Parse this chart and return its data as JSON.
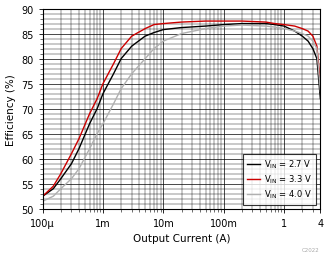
{
  "title": "",
  "xlabel": "Output Current (A)",
  "ylabel": "Efficiency (%)",
  "xlim": [
    0.0001,
    4
  ],
  "ylim": [
    50,
    90
  ],
  "yticks": [
    50,
    55,
    60,
    65,
    70,
    75,
    80,
    85,
    90
  ],
  "xtick_labels": [
    "100μ",
    "1m",
    "10m",
    "100m",
    "1",
    "4"
  ],
  "xtick_values": [
    0.0001,
    0.001,
    0.01,
    0.1,
    1,
    4
  ],
  "legend_labels": [
    "V$_{\\mathregular{IN}}$ = 2.7 V",
    "V$_{\\mathregular{IN}}$ = 3.3 V",
    "V$_{\\mathregular{IN}}$ = 4.0 V"
  ],
  "line_colors": [
    "#000000",
    "#cc0000",
    "#b0b0b0"
  ],
  "background_color": "#ffffff",
  "grid_color": "#000000",
  "curves": {
    "vin_27": {
      "x": [
        0.0001,
        0.00015,
        0.0002,
        0.0003,
        0.0004,
        0.0006,
        0.0008,
        0.001,
        0.0015,
        0.002,
        0.003,
        0.005,
        0.007,
        0.01,
        0.02,
        0.05,
        0.1,
        0.2,
        0.5,
        0.7,
        1.0,
        1.5,
        2.0,
        2.5,
        3.0,
        3.5,
        4.0
      ],
      "y": [
        52.5,
        54,
        56,
        59,
        62,
        67,
        70,
        73,
        77,
        80,
        82.5,
        84.5,
        85.2,
        85.8,
        86.2,
        86.5,
        86.8,
        87.0,
        87.0,
        86.8,
        86.5,
        85.5,
        84.5,
        83.5,
        82.0,
        80.0,
        72.0
      ]
    },
    "vin_33": {
      "x": [
        0.0001,
        0.00015,
        0.0002,
        0.0003,
        0.0004,
        0.0006,
        0.0008,
        0.001,
        0.0015,
        0.002,
        0.003,
        0.005,
        0.007,
        0.01,
        0.02,
        0.05,
        0.1,
        0.2,
        0.5,
        0.7,
        1.0,
        1.5,
        2.0,
        2.5,
        3.0,
        3.5,
        4.0
      ],
      "y": [
        52.5,
        54.5,
        57,
        61,
        64,
        69,
        72,
        75,
        79,
        82,
        84.5,
        86.0,
        86.8,
        87.0,
        87.3,
        87.5,
        87.5,
        87.5,
        87.3,
        87.0,
        86.8,
        86.5,
        86.0,
        85.5,
        84.5,
        82.5,
        75.0
      ]
    },
    "vin_40": {
      "x": [
        0.0001,
        0.00015,
        0.0002,
        0.0003,
        0.0004,
        0.0006,
        0.0008,
        0.001,
        0.0015,
        0.002,
        0.003,
        0.005,
        0.007,
        0.01,
        0.02,
        0.05,
        0.1,
        0.2,
        0.5,
        0.7,
        1.0,
        1.5,
        2.0,
        2.5,
        3.0,
        3.5,
        4.0
      ],
      "y": [
        51.5,
        52.5,
        54,
        56,
        58,
        62,
        65,
        67,
        71,
        74,
        77,
        80,
        82,
        83.5,
        85.0,
        86.0,
        86.5,
        86.7,
        86.5,
        86.3,
        86.0,
        85.5,
        85.0,
        84.5,
        83.5,
        82.0,
        73.5
      ]
    }
  }
}
